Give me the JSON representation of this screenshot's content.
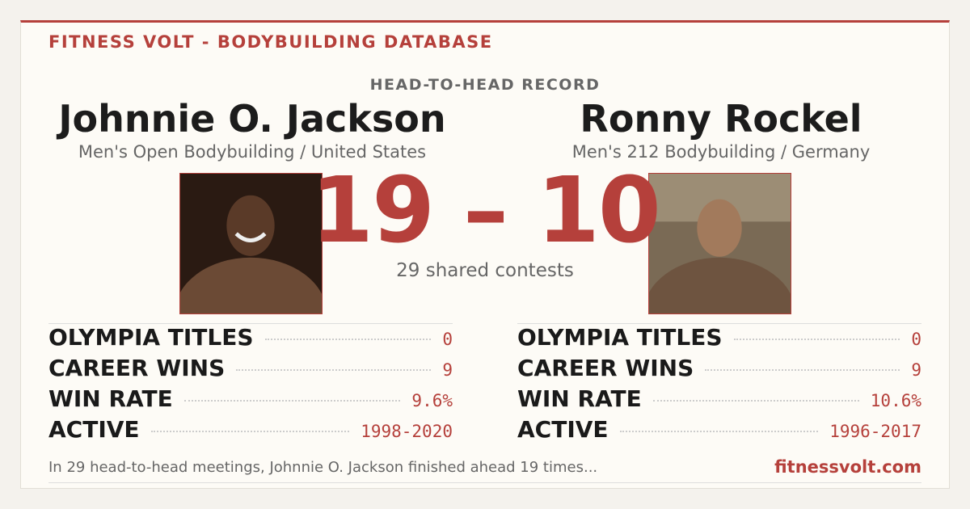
{
  "header": {
    "brand": "FITNESS VOLT - BODYBUILDING DATABASE",
    "section": "HEAD-TO-HEAD RECORD"
  },
  "athletes": [
    {
      "name": "Johnnie O. Jackson",
      "division": "Men's Open Bodybuilding / United States",
      "stats": [
        [
          "OLYMPIA TITLES",
          "0"
        ],
        [
          "CAREER WINS",
          "9"
        ],
        [
          "WIN RATE",
          "9.6%"
        ],
        [
          "ACTIVE",
          "1998-2020"
        ]
      ]
    },
    {
      "name": "Ronny Rockel",
      "division": "Men's 212 Bodybuilding / Germany",
      "stats": [
        [
          "OLYMPIA TITLES",
          "0"
        ],
        [
          "CAREER WINS",
          "9"
        ],
        [
          "WIN RATE",
          "10.6%"
        ],
        [
          "ACTIVE",
          "1996-2017"
        ]
      ]
    }
  ],
  "score": "19 – 10",
  "shared": "29 shared contests",
  "footer": {
    "summary": "In 29 head-to-head meetings, Johnnie O. Jackson finished ahead 19 times...",
    "site": "fitnessvolt.com"
  }
}
